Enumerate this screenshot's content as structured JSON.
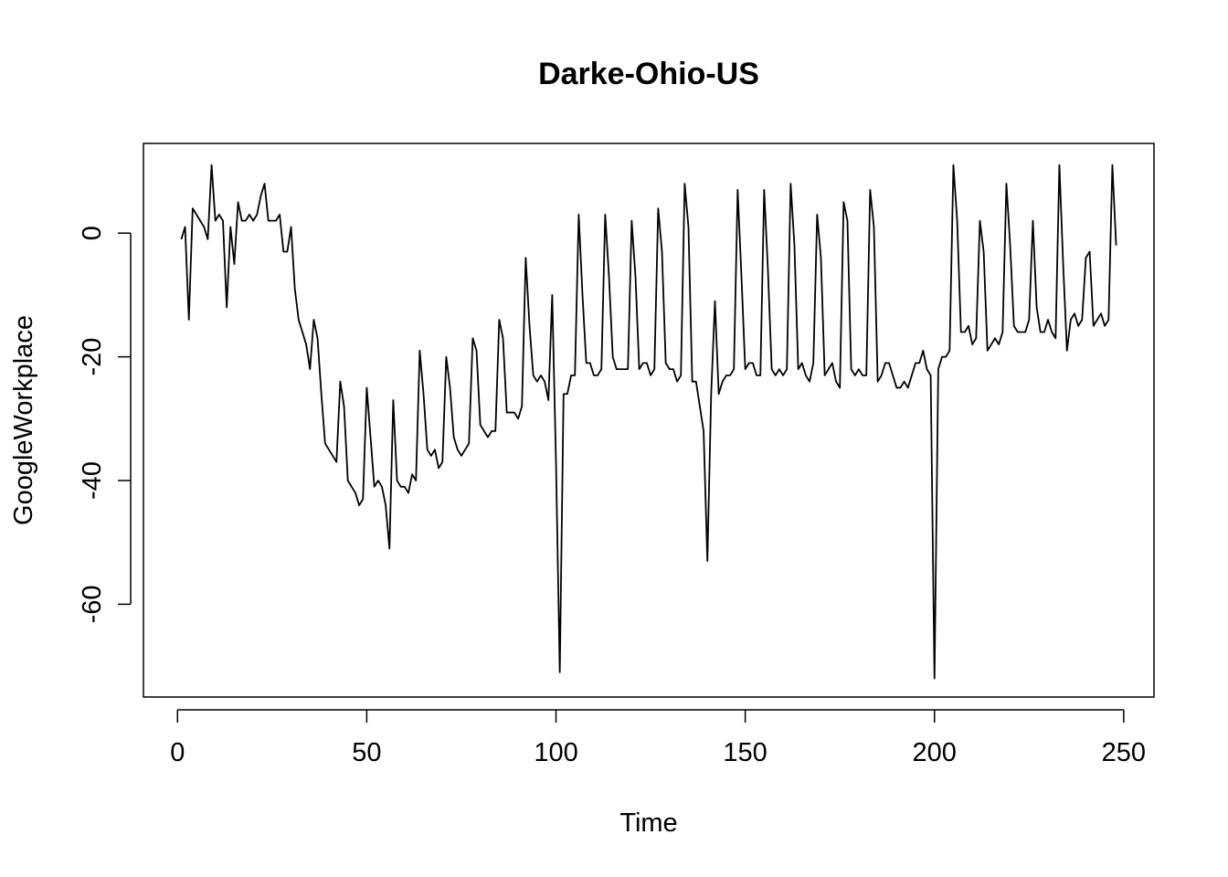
{
  "chart_data": {
    "type": "line",
    "title": "Darke-Ohio-US",
    "xlabel": "Time",
    "ylabel": "GoogleWorkplace",
    "xlim": [
      -9,
      258
    ],
    "ylim": [
      -75,
      14.5
    ],
    "x_ticks": [
      0,
      50,
      100,
      150,
      200,
      250
    ],
    "y_ticks": [
      0,
      -20,
      -40,
      -60
    ],
    "grid": false,
    "legend": "none",
    "line_color": "#000000",
    "series": [
      {
        "x_start": 1,
        "values": [
          -1,
          1,
          -14,
          4,
          3,
          2,
          1,
          -1,
          11,
          2,
          3,
          2,
          -12,
          1,
          -5,
          5,
          2,
          2,
          3,
          2,
          3,
          6,
          8,
          2,
          2,
          2,
          3,
          -3,
          -3,
          1,
          -9,
          -14,
          -16,
          -18,
          -22,
          -14,
          -17,
          -26,
          -34,
          -35,
          -36,
          -37,
          -24,
          -28,
          -40,
          -41,
          -42,
          -44,
          -43,
          -25,
          -33,
          -41,
          -40,
          -41,
          -44,
          -51,
          -27,
          -40,
          -41,
          -41,
          -42,
          -39,
          -40,
          -19,
          -26,
          -35,
          -36,
          -35,
          -38,
          -37,
          -20,
          -25,
          -33,
          -35,
          -36,
          -35,
          -34,
          -17,
          -19,
          -31,
          -32,
          -33,
          -32,
          -32,
          -14,
          -17,
          -29,
          -29,
          -29,
          -30,
          -28,
          -4,
          -15,
          -23,
          -24,
          -23,
          -24,
          -27,
          -10,
          -37,
          -71,
          -26,
          -26,
          -23,
          -23,
          3,
          -10,
          -21,
          -21,
          -23,
          -23,
          -22,
          3,
          -7,
          -20,
          -22,
          -22,
          -22,
          -22,
          2,
          -7,
          -22,
          -21,
          -21,
          -23,
          -22,
          4,
          -3,
          -21,
          -22,
          -22,
          -24,
          -23,
          8,
          1,
          -24,
          -24,
          -28,
          -32,
          -53,
          -26,
          -11,
          -26,
          -24,
          -23,
          -23,
          -22,
          7,
          -7,
          -22,
          -21,
          -21,
          -23,
          -23,
          7,
          -6,
          -22,
          -23,
          -22,
          -23,
          -22,
          8,
          -2,
          -22,
          -21,
          -23,
          -24,
          -21,
          3,
          -4,
          -23,
          -22,
          -21,
          -24,
          -25,
          5,
          2,
          -22,
          -23,
          -22,
          -23,
          -23,
          7,
          1,
          -24,
          -23,
          -21,
          -21,
          -23,
          -25,
          -25,
          -24,
          -25,
          -23,
          -21,
          -21,
          -19,
          -22,
          -23,
          -72,
          -22,
          -20,
          -20,
          -19,
          11,
          2,
          -16,
          -16,
          -15,
          -18,
          -17,
          2,
          -3,
          -19,
          -18,
          -17,
          -18,
          -16,
          8,
          -2,
          -15,
          -16,
          -16,
          -16,
          -14,
          2,
          -12,
          -16,
          -16,
          -14,
          -16,
          -17,
          11,
          -5,
          -19,
          -14,
          -13,
          -15,
          -14,
          -4,
          -3,
          -15,
          -14,
          -13,
          -15,
          -14,
          11,
          -2
        ]
      }
    ]
  }
}
